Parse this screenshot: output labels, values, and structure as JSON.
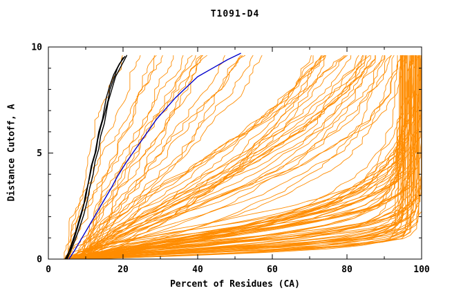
{
  "chart_data": {
    "type": "line",
    "title": "T1091-D4",
    "xlabel": "Percent of Residues (CA)",
    "ylabel": "Distance Cutoff, A",
    "xlim": [
      0,
      100
    ],
    "ylim": [
      0,
      10
    ],
    "xticks": [
      0,
      20,
      40,
      60,
      80,
      100
    ],
    "yticks": [
      0,
      5,
      10
    ],
    "x_minor_step": 10,
    "y_minor_step": 1,
    "grid": false,
    "legend": "none",
    "colors": {
      "ensemble": "#ff8c00",
      "highlight": "#0000cc",
      "reference": "#000000",
      "axis": "#000000",
      "background": "#ffffff"
    },
    "series": [
      {
        "name": "reference-curve-1",
        "color": "#000000",
        "width": 1.4,
        "points": [
          [
            4.5,
            0
          ],
          [
            6,
            0.5
          ],
          [
            7,
            1
          ],
          [
            8,
            1.6
          ],
          [
            9,
            2.2
          ],
          [
            10,
            2.9
          ],
          [
            10.5,
            3.4
          ],
          [
            11,
            3.9
          ],
          [
            11.5,
            4.4
          ],
          [
            12.5,
            5.0
          ],
          [
            13,
            5.5
          ],
          [
            13.5,
            6.0
          ],
          [
            14.5,
            6.6
          ],
          [
            15,
            7.1
          ],
          [
            15.5,
            7.6
          ],
          [
            16.5,
            8.2
          ],
          [
            17.5,
            8.7
          ],
          [
            19,
            9.2
          ],
          [
            20.5,
            9.55
          ]
        ]
      },
      {
        "name": "reference-curve-2",
        "color": "#000000",
        "width": 1.4,
        "points": [
          [
            5,
            0
          ],
          [
            6.5,
            0.6
          ],
          [
            8,
            1.3
          ],
          [
            9.5,
            2.1
          ],
          [
            10.5,
            2.8
          ],
          [
            11,
            3.3
          ],
          [
            12,
            4.0
          ],
          [
            12.5,
            4.6
          ],
          [
            13.5,
            5.2
          ],
          [
            14,
            5.8
          ],
          [
            15,
            6.4
          ],
          [
            15.5,
            6.9
          ],
          [
            16,
            7.4
          ],
          [
            17,
            8.0
          ],
          [
            18,
            8.6
          ],
          [
            19.5,
            9.1
          ],
          [
            21,
            9.6
          ]
        ]
      },
      {
        "name": "reference-curve-3",
        "color": "#000000",
        "width": 1.4,
        "points": [
          [
            4.8,
            0
          ],
          [
            6.2,
            0.7
          ],
          [
            7.5,
            1.4
          ],
          [
            8.5,
            2.0
          ],
          [
            9.5,
            2.6
          ],
          [
            10,
            3.1
          ],
          [
            11,
            3.8
          ],
          [
            11.8,
            4.5
          ],
          [
            12.8,
            5.1
          ],
          [
            13.2,
            5.6
          ],
          [
            14,
            6.2
          ],
          [
            15,
            6.8
          ],
          [
            16,
            7.5
          ],
          [
            16.5,
            8.0
          ],
          [
            17.5,
            8.5
          ],
          [
            18.5,
            9.0
          ],
          [
            20,
            9.5
          ]
        ]
      },
      {
        "name": "highlighted-model-curve",
        "color": "#0000cc",
        "width": 1.4,
        "points": [
          [
            5.5,
            0
          ],
          [
            7,
            0.4
          ],
          [
            9,
            1.0
          ],
          [
            11,
            1.6
          ],
          [
            13,
            2.2
          ],
          [
            15,
            2.8
          ],
          [
            17,
            3.4
          ],
          [
            18.5,
            3.9
          ],
          [
            21,
            4.6
          ],
          [
            23,
            5.1
          ],
          [
            25,
            5.6
          ],
          [
            27,
            6.1
          ],
          [
            29,
            6.6
          ],
          [
            31,
            7.0
          ],
          [
            34,
            7.6
          ],
          [
            37,
            8.1
          ],
          [
            40,
            8.6
          ],
          [
            44,
            9.0
          ],
          [
            48,
            9.4
          ],
          [
            51.5,
            9.7
          ]
        ]
      }
    ],
    "ensemble": {
      "name": "model-ensemble",
      "color": "#ff8c00",
      "width": 0.9,
      "count": 120,
      "seed": 42,
      "x_start_range": [
        4,
        11
      ],
      "x_cap_range": [
        93,
        100
      ],
      "y_top_range": [
        9.6,
        9.75
      ],
      "quality_mix": [
        {
          "fraction": 0.55,
          "a_range": [
            0.35,
            2.2
          ],
          "b_range": [
            1.0,
            2.2
          ]
        },
        {
          "fraction": 0.3,
          "a_range": [
            2.5,
            8.0
          ],
          "b_range": [
            0.9,
            1.8
          ]
        },
        {
          "fraction": 0.15,
          "a_range": [
            9.0,
            30.0
          ],
          "b_range": [
            0.9,
            1.6
          ]
        }
      ],
      "jitter": 1.6
    }
  }
}
